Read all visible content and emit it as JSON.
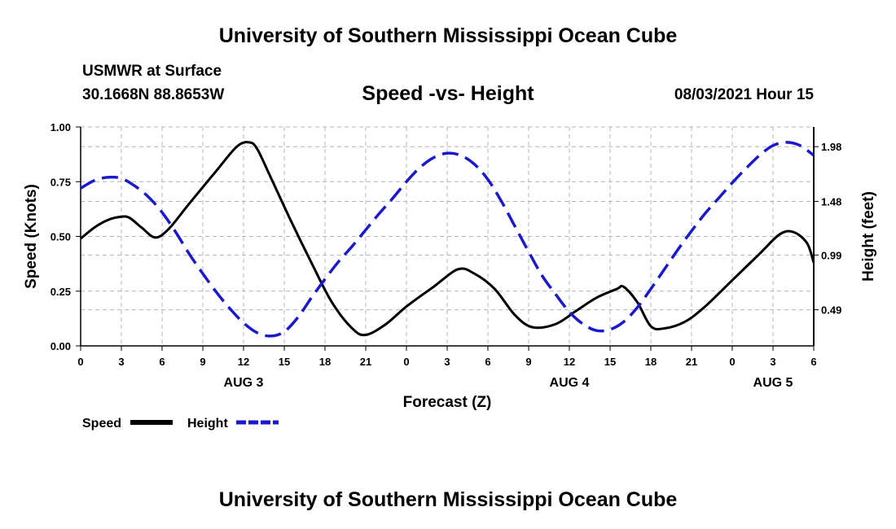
{
  "header": {
    "title": "University of Southern Mississippi Ocean Cube",
    "station_name": "USMWR at Surface",
    "station_coords": "30.1668N  88.8653W",
    "chart_title": "Speed -vs- Height",
    "date": "08/03/2021 Hour 15"
  },
  "footer": {
    "title": "University of Southern Mississippi Ocean Cube"
  },
  "colors": {
    "speed": "#000000",
    "height": "#1a1acc",
    "grid": "#b4b4b4"
  },
  "chart_data": {
    "type": "line",
    "title": "Speed -vs- Height",
    "xlabel": "Forecast (Z)",
    "ylabel": "Speed (Knots)",
    "y2label": "Height (feet)",
    "x_unit": "hours from Aug 3 00Z",
    "xlim": [
      0,
      54
    ],
    "ylim": [
      0,
      1
    ],
    "y2lim": [
      0.16,
      2.16
    ],
    "x_ticks": [
      0,
      3,
      6,
      9,
      12,
      15,
      18,
      21,
      24,
      27,
      30,
      33,
      36,
      39,
      42,
      45,
      48,
      51,
      54
    ],
    "x_tick_labels": [
      "0",
      "3",
      "6",
      "9",
      "12",
      "15",
      "18",
      "21",
      "0",
      "3",
      "6",
      "9",
      "12",
      "15",
      "18",
      "21",
      "0",
      "3",
      "6"
    ],
    "y_ticks": [
      0,
      0.25,
      0.5,
      0.75,
      1.0
    ],
    "y_tick_labels": [
      "0.00",
      "0.25",
      "0.50",
      "0.75",
      "1.00"
    ],
    "y2_ticks": [
      0.49,
      0.99,
      1.48,
      1.98
    ],
    "y2_tick_labels": [
      "0.49",
      "0.99",
      "1.48",
      "1.98"
    ],
    "date_labels": [
      {
        "x": 12,
        "label": "AUG 3"
      },
      {
        "x": 36,
        "label": "AUG 4"
      },
      {
        "x": 51,
        "label": "AUG 5"
      }
    ],
    "series": [
      {
        "name": "Speed",
        "axis": "left",
        "style": "solid",
        "x": [
          0,
          1,
          2,
          3,
          3.6,
          4.5,
          5.5,
          6.5,
          8,
          10,
          11.5,
          12.4,
          13,
          14,
          15.5,
          17,
          18.5,
          20,
          21,
          22.5,
          24,
          26,
          27.8,
          29,
          30.5,
          32,
          33.3,
          35,
          36.5,
          38,
          39.5,
          40,
          41,
          42,
          43,
          44.5,
          46,
          48,
          50,
          51.5,
          52.5,
          53.5,
          54
        ],
        "values": [
          0.49,
          0.54,
          0.575,
          0.59,
          0.585,
          0.54,
          0.495,
          0.535,
          0.65,
          0.8,
          0.91,
          0.93,
          0.9,
          0.77,
          0.57,
          0.38,
          0.2,
          0.08,
          0.05,
          0.1,
          0.18,
          0.27,
          0.35,
          0.33,
          0.26,
          0.14,
          0.085,
          0.1,
          0.16,
          0.22,
          0.26,
          0.27,
          0.2,
          0.09,
          0.08,
          0.11,
          0.18,
          0.3,
          0.42,
          0.51,
          0.52,
          0.47,
          0.38
        ]
      },
      {
        "name": "Height",
        "axis": "right",
        "style": "dashed",
        "x": [
          0,
          1,
          2,
          3,
          4,
          5,
          6,
          7,
          8,
          9,
          10,
          11,
          12,
          13,
          14,
          15,
          16,
          17,
          18,
          19,
          20,
          21,
          22,
          23,
          24,
          25,
          26,
          27,
          28,
          29,
          30,
          31,
          32,
          33,
          34,
          35,
          36,
          37,
          38,
          39,
          40,
          41,
          42,
          43,
          44,
          45,
          46,
          47,
          48,
          49,
          50,
          51,
          52,
          53,
          54
        ],
        "values": [
          1.6,
          1.67,
          1.7,
          1.69,
          1.62,
          1.52,
          1.38,
          1.2,
          1.0,
          0.82,
          0.65,
          0.5,
          0.37,
          0.28,
          0.25,
          0.29,
          0.42,
          0.6,
          0.77,
          0.93,
          1.07,
          1.22,
          1.37,
          1.51,
          1.66,
          1.79,
          1.88,
          1.92,
          1.9,
          1.82,
          1.68,
          1.48,
          1.25,
          1.02,
          0.8,
          0.63,
          0.47,
          0.36,
          0.3,
          0.31,
          0.38,
          0.51,
          0.68,
          0.86,
          1.04,
          1.21,
          1.37,
          1.51,
          1.65,
          1.78,
          1.9,
          1.99,
          2.02,
          1.99,
          1.9
        ]
      }
    ],
    "legend": [
      {
        "label": "Speed",
        "style": "solid"
      },
      {
        "label": "Height",
        "style": "dashed"
      }
    ],
    "legend_position": "bottom-left",
    "grid": true
  }
}
